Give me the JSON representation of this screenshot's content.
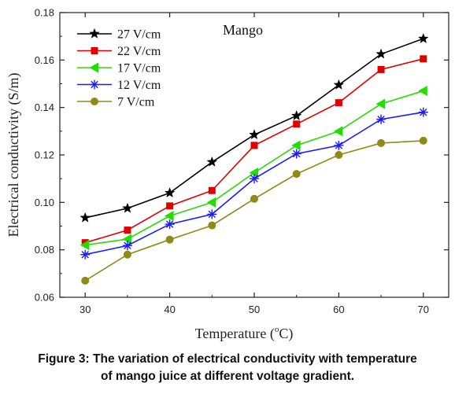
{
  "caption": {
    "line1": "Figure 3: The variation of electrical conductivity with temperature",
    "line2": "of mango juice at different voltage gradient."
  },
  "chart_data": {
    "type": "line",
    "title": "",
    "annotation": "Mango",
    "xlabel_prefix": "Temperature (",
    "xlabel_degree": "o",
    "xlabel_suffix": "C)",
    "ylabel": "Electrical conductivity (S/m)",
    "x": [
      30,
      35,
      40,
      45,
      50,
      55,
      60,
      65,
      70
    ],
    "xlim": [
      27,
      73
    ],
    "ylim": [
      0.06,
      0.18
    ],
    "xticks": [
      "30",
      "40",
      "50",
      "60",
      "70"
    ],
    "yticks": [
      "0.06",
      "0.08",
      "0.10",
      "0.12",
      "0.14",
      "0.16",
      "0.18"
    ],
    "grid": false,
    "legend_position": "top-left",
    "series": [
      {
        "name": "27 V/cm",
        "color": "#000000",
        "marker": "star",
        "values": [
          0.0935,
          0.0975,
          0.104,
          0.117,
          0.1285,
          0.1365,
          0.1495,
          0.1625,
          0.169
        ]
      },
      {
        "name": "22 V/cm",
        "color": "#e00000",
        "marker": "square",
        "values": [
          0.083,
          0.0883,
          0.0985,
          0.105,
          0.124,
          0.133,
          0.142,
          0.156,
          0.1605
        ]
      },
      {
        "name": "17 V/cm",
        "color": "#22dd00",
        "marker": "triangle-left",
        "values": [
          0.082,
          0.0845,
          0.0943,
          0.1,
          0.1125,
          0.124,
          0.13,
          0.1415,
          0.147
        ]
      },
      {
        "name": "12 V/cm",
        "color": "#1a1aff",
        "marker": "asterisk",
        "values": [
          0.078,
          0.0818,
          0.0908,
          0.095,
          0.11,
          0.1205,
          0.124,
          0.135,
          0.138
        ]
      },
      {
        "name": "7 V/cm",
        "color": "#8f8a16",
        "marker": "circle",
        "values": [
          0.067,
          0.078,
          0.0843,
          0.0903,
          0.1015,
          0.112,
          0.12,
          0.125,
          0.126
        ]
      }
    ]
  }
}
